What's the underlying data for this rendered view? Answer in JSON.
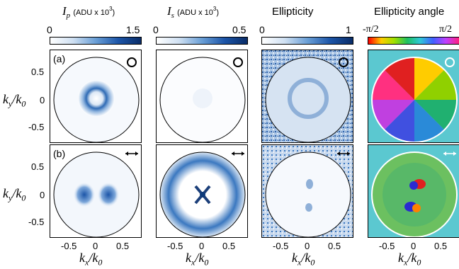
{
  "colorbars": {
    "ip": {
      "title_symbol": "I",
      "title_sub": "p",
      "title_unit": "(ADU x 10",
      "title_exp": "3",
      "title_close": ")",
      "min": "0",
      "max": "1.5"
    },
    "is": {
      "title_symbol": "I",
      "title_sub": "s",
      "title_unit": "(ADU x 10",
      "title_exp": "3",
      "title_close": ")",
      "min": "0",
      "max": "0.5"
    },
    "ellipticity": {
      "title": "Ellipticity",
      "min": "0",
      "max": "1"
    },
    "angle": {
      "title": "Ellipticity angle",
      "min": "-π/2",
      "max": "π/2"
    }
  },
  "panels": {
    "row_a_label": "(a)",
    "row_b_label": "(b)",
    "row_a_polarization": "circular-icon",
    "row_b_polarization": "double-arrow-icon"
  },
  "axes": {
    "y_ticks": [
      "0.5",
      "0",
      "-0.5"
    ],
    "x_ticks": [
      "-0.5",
      "0",
      "0.5"
    ],
    "ylabel": "ky/k0",
    "xlabel": "kx/k0"
  },
  "colors": {
    "blue_dark": "#0d3a7a",
    "blue_mid": "#3b78c0",
    "teal_background": "#5bc8d0"
  }
}
